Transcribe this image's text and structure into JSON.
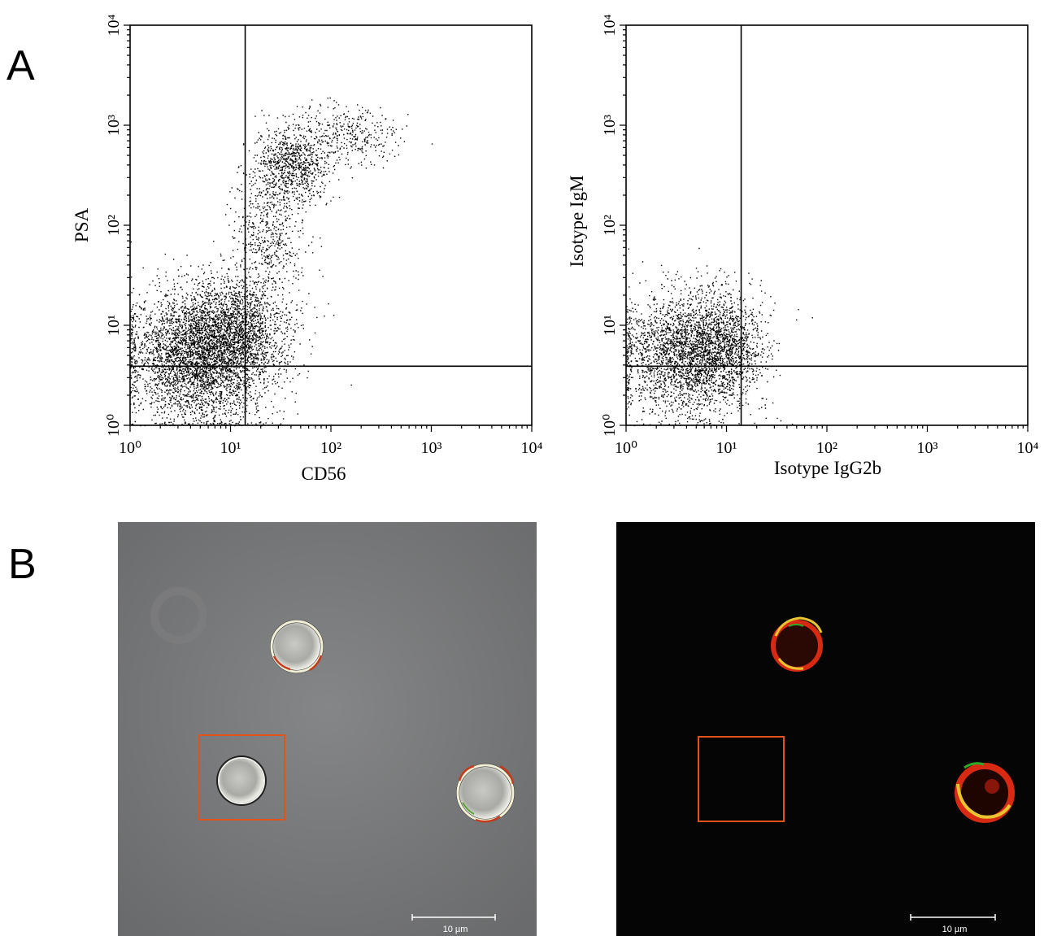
{
  "panels": {
    "a": "A",
    "b": "B"
  },
  "chart_data": [
    {
      "type": "scatter",
      "xlabel": "CD56",
      "ylabel": "PSA",
      "x_scale": "log",
      "y_scale": "log",
      "xlim": [
        1,
        10000
      ],
      "ylim": [
        1,
        10000
      ],
      "x_ticks": [
        "10⁰",
        "10¹",
        "10²",
        "10³",
        "10⁴"
      ],
      "y_ticks": [
        "10⁰",
        "10¹",
        "10²",
        "10³",
        "10⁴"
      ],
      "quadrant_gate": {
        "x": 14,
        "y": 3.9
      },
      "series": [
        {
          "clusters": [
            {
              "x_center": 5,
              "y_center": 5,
              "spread_log": [
                0.35,
                0.32
              ],
              "count": 5200
            },
            {
              "x_center": 12,
              "y_center": 10,
              "spread_log": [
                0.25,
                0.25
              ],
              "count": 1200
            },
            {
              "x_center": 40,
              "y_center": 400,
              "spread_log": [
                0.18,
                0.2
              ],
              "count": 900
            },
            {
              "x_center": 150,
              "y_center": 800,
              "spread_log": [
                0.25,
                0.15
              ],
              "count": 350
            },
            {
              "x_center": 25,
              "y_center": 80,
              "spread_log": [
                0.18,
                0.3
              ],
              "count": 500
            }
          ]
        }
      ]
    },
    {
      "type": "scatter",
      "xlabel": "Isotype IgG2b",
      "ylabel": "Isotype IgM",
      "x_scale": "log",
      "y_scale": "log",
      "xlim": [
        1,
        10000
      ],
      "ylim": [
        1,
        10000
      ],
      "x_ticks": [
        "10⁰",
        "10¹",
        "10²",
        "10³",
        "10⁴"
      ],
      "y_ticks": [
        "10⁰",
        "10¹",
        "10²",
        "10³",
        "10⁴"
      ],
      "quadrant_gate": {
        "x": 14,
        "y": 3.9
      },
      "series": [
        {
          "clusters": [
            {
              "x_center": 4,
              "y_center": 5,
              "spread_log": [
                0.33,
                0.3
              ],
              "count": 4800
            },
            {
              "x_center": 9,
              "y_center": 7,
              "spread_log": [
                0.2,
                0.25
              ],
              "count": 900
            }
          ]
        }
      ]
    }
  ],
  "micrographs": [
    {
      "scale_bar_label": "10 µm",
      "background": "#757677"
    },
    {
      "scale_bar_label": "10 µm",
      "background": "#050505"
    }
  ],
  "colors": {
    "box": "#e0541c",
    "red": "#d82a12",
    "yellow": "#e8c430",
    "green": "#2fa829"
  }
}
